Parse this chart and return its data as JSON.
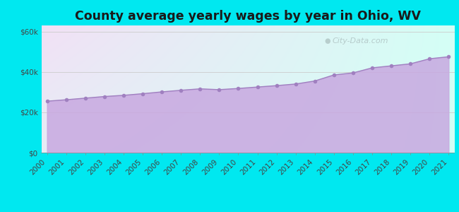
{
  "title": "County average yearly wages by year in Ohio, WV",
  "years": [
    2000,
    2001,
    2002,
    2003,
    2004,
    2005,
    2006,
    2007,
    2008,
    2009,
    2010,
    2011,
    2012,
    2013,
    2014,
    2015,
    2016,
    2017,
    2018,
    2019,
    2020,
    2021
  ],
  "wages": [
    25500,
    26200,
    27000,
    27800,
    28400,
    29200,
    30100,
    30900,
    31600,
    31200,
    31800,
    32500,
    33200,
    34000,
    35500,
    38500,
    39500,
    42000,
    43000,
    44000,
    46500,
    47500
  ],
  "fill_color": "#c8a8e0",
  "fill_alpha": 0.85,
  "line_color": "#a080c0",
  "marker_color": "#a080c0",
  "marker_size": 4,
  "bg_outer": "#00e8f0",
  "bg_inner": "#f0fff4",
  "yticks": [
    0,
    20000,
    40000,
    60000
  ],
  "ylabels": [
    "$0",
    "$20k",
    "$40k",
    "$60k"
  ],
  "ylim": [
    0,
    63000
  ],
  "watermark": "City-Data.com",
  "title_fontsize": 12.5,
  "tick_fontsize": 7.5
}
